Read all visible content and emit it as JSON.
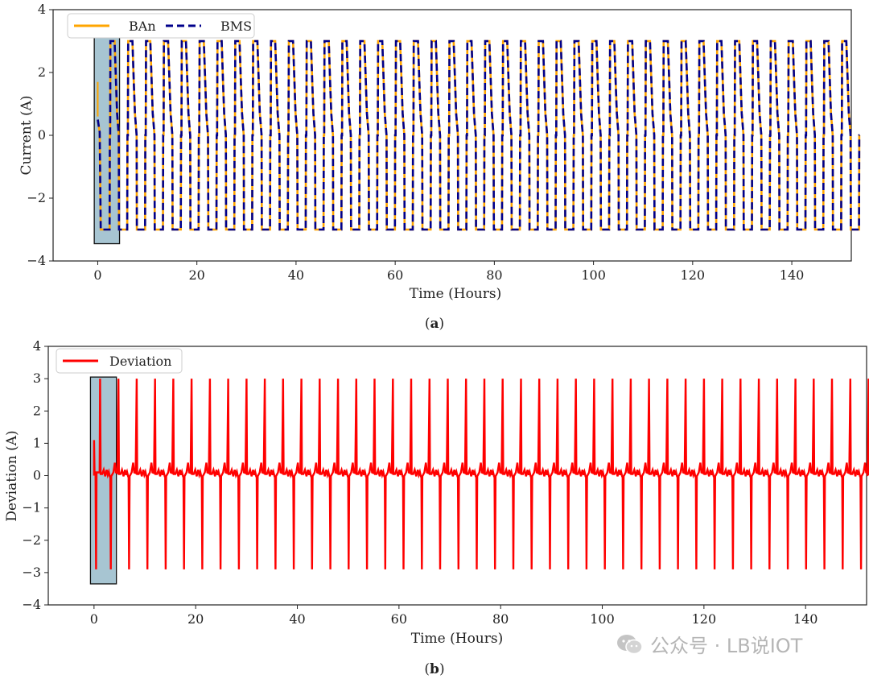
{
  "chart_data": [
    {
      "type": "line",
      "panel_label": "a",
      "xlabel": "Time (Hours)",
      "ylabel": "Current (A)",
      "xlim": [
        -9,
        152
      ],
      "ylim": [
        -4,
        4
      ],
      "xticks": [
        0,
        20,
        40,
        60,
        80,
        100,
        120,
        140
      ],
      "yticks": [
        -4,
        -2,
        0,
        2,
        4
      ],
      "legend": "top-left",
      "highlight_region": {
        "x": [
          -0.7,
          4.4
        ],
        "y": [
          -3.45,
          3.15
        ]
      },
      "cycles": {
        "count": 42,
        "period_hours": 3.6,
        "start_hours": 2.5,
        "charge_current": 3.0,
        "discharge_current": -3.0,
        "rest_current": 0.0
      },
      "series": [
        {
          "name": "BAn",
          "color": "#ffa500",
          "style": "solid"
        },
        {
          "name": "BMS",
          "color": "#00008b",
          "style": "dashed"
        }
      ]
    },
    {
      "type": "line",
      "panel_label": "b",
      "xlabel": "Time (Hours)",
      "ylabel": "Deviation (A)",
      "xlim": [
        -9,
        152
      ],
      "ylim": [
        -4,
        4
      ],
      "xticks": [
        0,
        20,
        40,
        60,
        80,
        100,
        120,
        140
      ],
      "yticks": [
        -4,
        -3,
        -2,
        -1,
        0,
        1,
        2,
        3,
        4
      ],
      "legend": "top-left",
      "highlight_region": {
        "x": [
          -0.7,
          4.4
        ],
        "y": [
          -3.35,
          3.05
        ]
      },
      "cycles": {
        "count": 42,
        "period_hours": 3.6,
        "start_hours": 1.6,
        "spike_high": 3.0,
        "spike_low": -2.9,
        "ripple": 0.18
      },
      "series": [
        {
          "name": "Deviation",
          "color": "#ff0000",
          "style": "solid"
        }
      ]
    }
  ],
  "watermark": "公众号 · LB说IOT"
}
